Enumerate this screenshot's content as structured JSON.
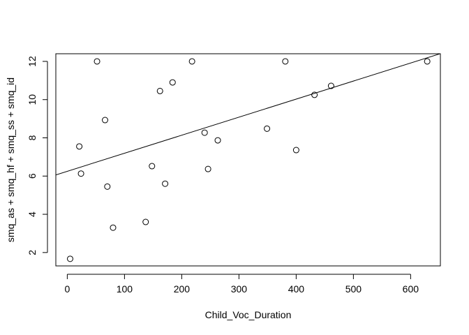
{
  "chart_data": {
    "type": "scatter",
    "title": "",
    "xlabel": "Child_Voc_Duration",
    "ylabel": "smq_as + smq_hf + smq_ss + smq_id",
    "xlim": [
      -20,
      652
    ],
    "ylim": [
      1.3,
      12.4
    ],
    "xticks": [
      0,
      100,
      200,
      300,
      400,
      500,
      600
    ],
    "yticks": [
      2,
      4,
      6,
      8,
      10,
      12
    ],
    "grid": false,
    "legend": "none",
    "points": [
      {
        "x": 5,
        "y": 1.67
      },
      {
        "x": 21,
        "y": 7.55
      },
      {
        "x": 24,
        "y": 6.13
      },
      {
        "x": 52,
        "y": 12.0
      },
      {
        "x": 66,
        "y": 8.93
      },
      {
        "x": 70,
        "y": 5.45
      },
      {
        "x": 80,
        "y": 3.3
      },
      {
        "x": 137,
        "y": 3.6
      },
      {
        "x": 148,
        "y": 6.52
      },
      {
        "x": 162,
        "y": 10.45
      },
      {
        "x": 171,
        "y": 5.6
      },
      {
        "x": 184,
        "y": 10.9
      },
      {
        "x": 218,
        "y": 12.0
      },
      {
        "x": 240,
        "y": 8.27
      },
      {
        "x": 246,
        "y": 6.37
      },
      {
        "x": 263,
        "y": 7.87
      },
      {
        "x": 349,
        "y": 8.48
      },
      {
        "x": 381,
        "y": 12.0
      },
      {
        "x": 400,
        "y": 7.36
      },
      {
        "x": 432,
        "y": 10.25
      },
      {
        "x": 461,
        "y": 10.72
      },
      {
        "x": 629,
        "y": 12.0
      }
    ],
    "regression_line": {
      "intercept": 6.25,
      "slope": 0.00944
    }
  }
}
